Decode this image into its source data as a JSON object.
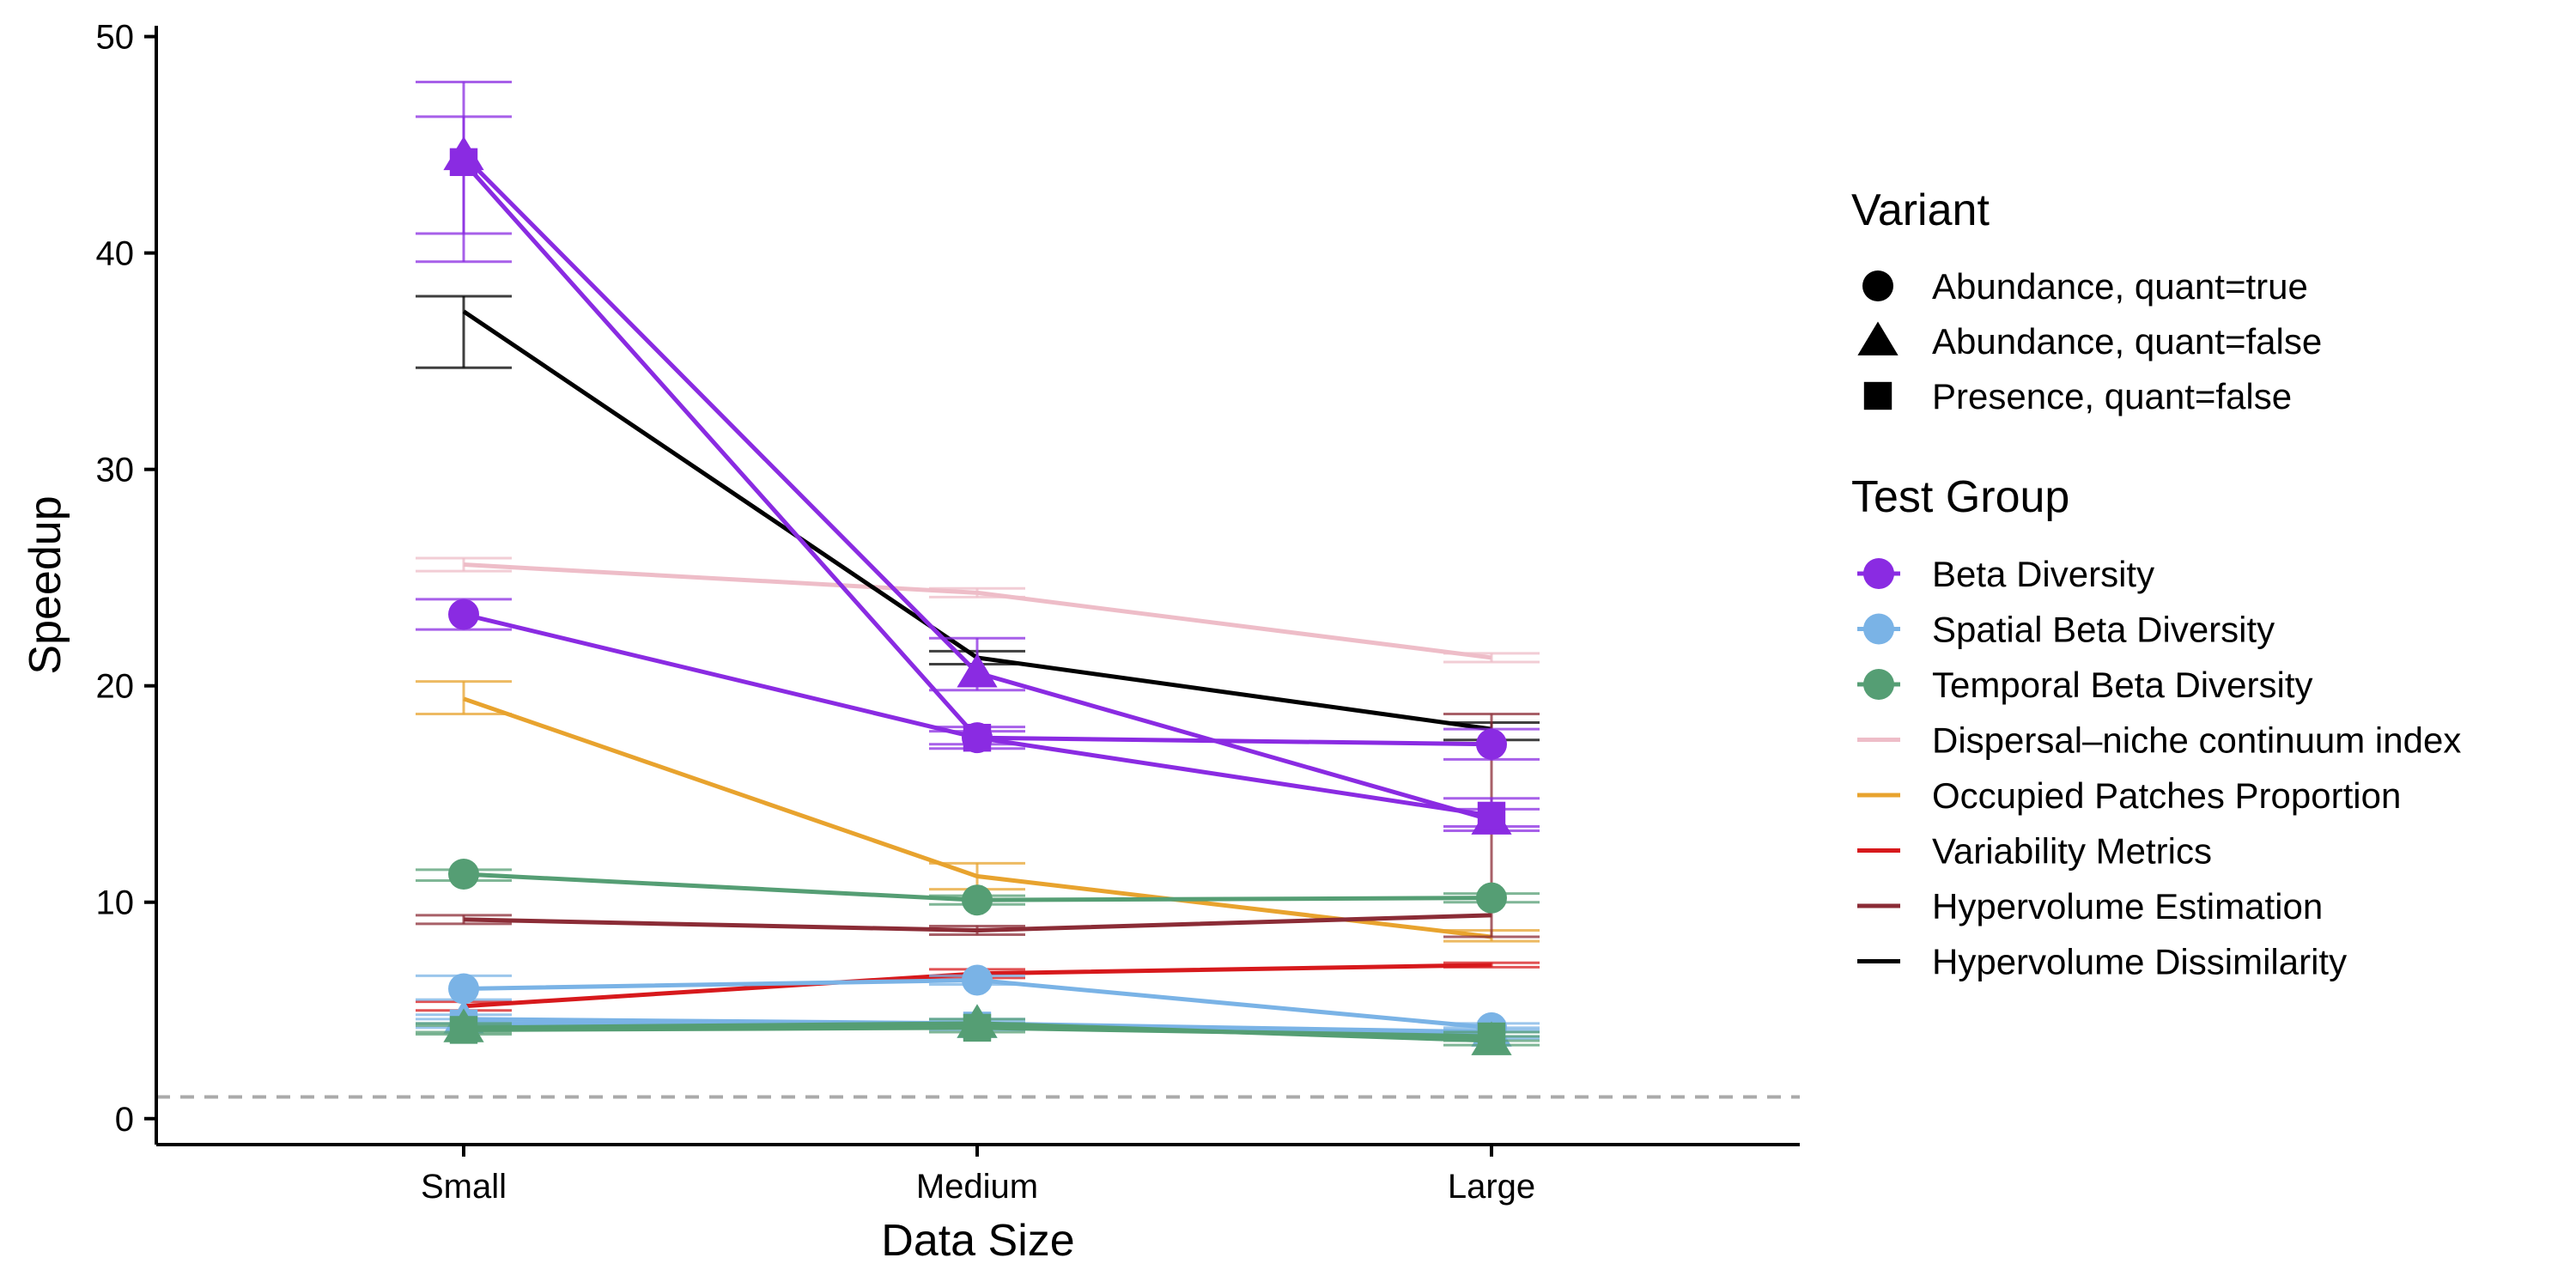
{
  "chart_data": {
    "type": "line",
    "xlabel": "Data Size",
    "ylabel": "Speedup",
    "categories": [
      "Small",
      "Medium",
      "Large"
    ],
    "ylim": [
      -1.2,
      50.5
    ],
    "yticks": [
      0,
      10,
      20,
      30,
      40,
      50
    ],
    "reference_line": {
      "y": 1,
      "style": "dashed",
      "color": "#aaaaaa"
    },
    "grid": false,
    "legend_position": "right",
    "variant_legend": {
      "title": "Variant",
      "items": [
        {
          "label": "Abundance, quant=true",
          "shape": "circle"
        },
        {
          "label": "Abundance, quant=false",
          "shape": "triangle"
        },
        {
          "label": "Presence, quant=false",
          "shape": "square"
        }
      ]
    },
    "group_legend": {
      "title": "Test Group",
      "items": [
        {
          "label": "Beta Diversity",
          "color": "#8a2be2",
          "marker": true
        },
        {
          "label": "Spatial Beta Diversity",
          "color": "#7ab3e6",
          "marker": true
        },
        {
          "label": "Temporal Beta Diversity",
          "color": "#559e74",
          "marker": true
        },
        {
          "label": "Dispersal–niche continuum index",
          "color": "#eebdc8",
          "marker": false
        },
        {
          "label": "Occupied Patches Proportion",
          "color": "#e8a32e",
          "marker": false
        },
        {
          "label": "Variability Metrics",
          "color": "#d7191c",
          "marker": false
        },
        {
          "label": "Hypervolume Estimation",
          "color": "#8b2c36",
          "marker": false
        },
        {
          "label": "Hypervolume Dissimilarity",
          "color": "#000000",
          "marker": false
        }
      ]
    },
    "series": [
      {
        "group": "Dispersal–niche continuum index",
        "color": "#eebdc8",
        "shape": "none",
        "values": [
          25.6,
          24.3,
          21.3
        ],
        "err_low": [
          25.3,
          24.1,
          21.1
        ],
        "err_high": [
          25.9,
          24.5,
          21.5
        ]
      },
      {
        "group": "Hypervolume Dissimilarity",
        "color": "#000000",
        "shape": "none",
        "values": [
          37.3,
          21.3,
          18.0
        ],
        "err_low": [
          34.7,
          21.0,
          17.5
        ],
        "err_high": [
          38.0,
          21.6,
          18.3
        ]
      },
      {
        "group": "Occupied Patches Proportion",
        "color": "#e8a32e",
        "shape": "none",
        "values": [
          19.4,
          11.2,
          8.4
        ],
        "err_low": [
          18.7,
          10.6,
          8.2
        ],
        "err_high": [
          20.2,
          11.8,
          8.7
        ]
      },
      {
        "group": "Hypervolume Estimation",
        "color": "#8b2c36",
        "shape": "none",
        "values": [
          9.2,
          8.7,
          9.4
        ],
        "err_low": [
          9.0,
          8.5,
          8.4
        ],
        "err_high": [
          9.4,
          8.9,
          18.7
        ]
      },
      {
        "group": "Variability Metrics",
        "color": "#d7191c",
        "shape": "none",
        "values": [
          5.2,
          6.7,
          7.1
        ],
        "err_low": [
          5.0,
          6.5,
          7.0
        ],
        "err_high": [
          5.4,
          6.9,
          7.2
        ]
      },
      {
        "group": "Spatial Beta Diversity",
        "color": "#7ab3e6",
        "shape": "circle",
        "values": [
          6.0,
          6.4,
          4.2
        ],
        "err_low": [
          5.5,
          6.2,
          4.0
        ],
        "err_high": [
          6.6,
          6.6,
          4.4
        ]
      },
      {
        "group": "Spatial Beta Diversity",
        "color": "#7ab3e6",
        "shape": "triangle",
        "values": [
          4.6,
          4.4,
          4.0
        ],
        "err_low": [
          4.4,
          4.2,
          3.8
        ],
        "err_high": [
          4.8,
          4.6,
          4.2
        ]
      },
      {
        "group": "Spatial Beta Diversity",
        "color": "#7ab3e6",
        "shape": "square",
        "values": [
          4.4,
          4.3,
          3.9
        ],
        "err_low": [
          4.2,
          4.1,
          3.7
        ],
        "err_high": [
          4.6,
          4.5,
          4.1
        ]
      },
      {
        "group": "Temporal Beta Diversity",
        "color": "#559e74",
        "shape": "circle",
        "values": [
          11.3,
          10.1,
          10.2
        ],
        "err_low": [
          11.0,
          9.9,
          10.0
        ],
        "err_high": [
          11.5,
          10.3,
          10.4
        ]
      },
      {
        "group": "Temporal Beta Diversity",
        "color": "#559e74",
        "shape": "triangle",
        "values": [
          4.2,
          4.4,
          3.6
        ],
        "err_low": [
          4.0,
          4.2,
          3.4
        ],
        "err_high": [
          4.4,
          4.6,
          3.8
        ]
      },
      {
        "group": "Temporal Beta Diversity",
        "color": "#559e74",
        "shape": "square",
        "values": [
          4.1,
          4.2,
          3.8
        ],
        "err_low": [
          3.9,
          4.0,
          3.6
        ],
        "err_high": [
          4.3,
          4.4,
          4.0
        ]
      },
      {
        "group": "Beta Diversity",
        "color": "#8a2be2",
        "shape": "circle",
        "values": [
          23.3,
          17.6,
          17.3
        ],
        "err_low": [
          22.6,
          17.3,
          16.6
        ],
        "err_high": [
          24.0,
          17.9,
          18.0
        ]
      },
      {
        "group": "Beta Diversity",
        "color": "#8a2be2",
        "shape": "triangle",
        "values": [
          44.5,
          20.6,
          13.8
        ],
        "err_low": [
          40.9,
          19.8,
          13.3
        ],
        "err_high": [
          46.3,
          22.2,
          14.3
        ]
      },
      {
        "group": "Beta Diversity",
        "color": "#8a2be2",
        "shape": "square",
        "values": [
          44.2,
          17.6,
          14.0
        ],
        "err_low": [
          39.6,
          17.1,
          13.5
        ],
        "err_high": [
          47.9,
          18.1,
          14.8
        ]
      }
    ]
  }
}
